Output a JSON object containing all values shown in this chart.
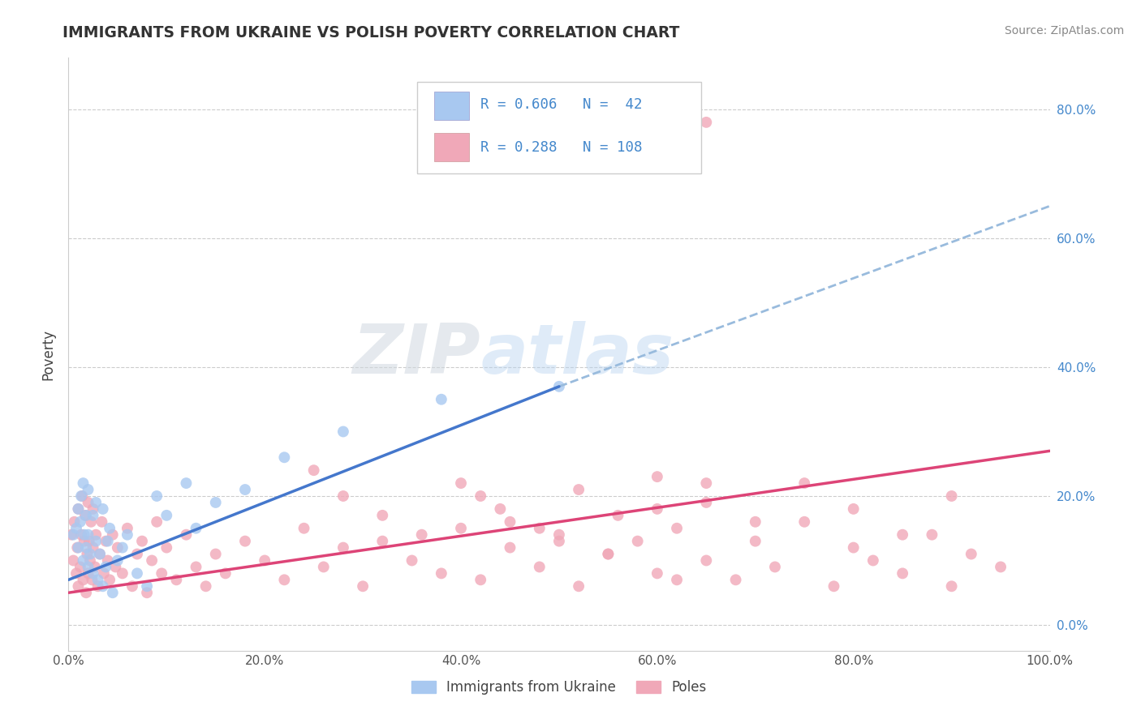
{
  "title": "IMMIGRANTS FROM UKRAINE VS POLISH POVERTY CORRELATION CHART",
  "source": "Source: ZipAtlas.com",
  "ylabel": "Poverty",
  "xlim": [
    0,
    1.0
  ],
  "ylim": [
    -0.04,
    0.88
  ],
  "ytick_vals": [
    0.0,
    0.2,
    0.4,
    0.6,
    0.8
  ],
  "ytick_labels_right": [
    "0.0%",
    "20.0%",
    "40.0%",
    "60.0%",
    "80.0%"
  ],
  "xtick_vals": [
    0.0,
    0.2,
    0.4,
    0.6,
    0.8,
    1.0
  ],
  "xtick_labels": [
    "0.0%",
    "20.0%",
    "40.0%",
    "60.0%",
    "80.0%",
    "100.0%"
  ],
  "blue_color": "#a8c8f0",
  "pink_color": "#f0a8b8",
  "blue_line_color": "#4477cc",
  "pink_line_color": "#dd4477",
  "dashed_line_color": "#99bbdd",
  "watermark_zip": "ZIP",
  "watermark_atlas": "atlas",
  "legend_r1": "R = 0.606",
  "legend_n1": "N =  42",
  "legend_r2": "R = 0.288",
  "legend_n2": "N = 108",
  "ukraine_x": [
    0.005,
    0.008,
    0.01,
    0.01,
    0.012,
    0.013,
    0.015,
    0.015,
    0.016,
    0.018,
    0.018,
    0.02,
    0.02,
    0.02,
    0.022,
    0.025,
    0.025,
    0.028,
    0.028,
    0.03,
    0.032,
    0.035,
    0.035,
    0.038,
    0.04,
    0.042,
    0.045,
    0.05,
    0.055,
    0.06,
    0.07,
    0.08,
    0.09,
    0.1,
    0.12,
    0.13,
    0.15,
    0.18,
    0.22,
    0.28,
    0.38,
    0.5
  ],
  "ukraine_y": [
    0.14,
    0.15,
    0.12,
    0.18,
    0.16,
    0.2,
    0.1,
    0.22,
    0.14,
    0.12,
    0.17,
    0.09,
    0.14,
    0.21,
    0.11,
    0.08,
    0.17,
    0.13,
    0.19,
    0.07,
    0.11,
    0.06,
    0.18,
    0.09,
    0.13,
    0.15,
    0.05,
    0.1,
    0.12,
    0.14,
    0.08,
    0.06,
    0.2,
    0.17,
    0.22,
    0.15,
    0.19,
    0.21,
    0.26,
    0.3,
    0.35,
    0.37
  ],
  "poles_x": [
    0.003,
    0.005,
    0.006,
    0.008,
    0.009,
    0.01,
    0.01,
    0.012,
    0.013,
    0.014,
    0.015,
    0.016,
    0.017,
    0.018,
    0.019,
    0.02,
    0.02,
    0.021,
    0.022,
    0.023,
    0.024,
    0.025,
    0.025,
    0.027,
    0.028,
    0.03,
    0.032,
    0.034,
    0.036,
    0.038,
    0.04,
    0.042,
    0.045,
    0.048,
    0.05,
    0.055,
    0.06,
    0.065,
    0.07,
    0.075,
    0.08,
    0.085,
    0.09,
    0.095,
    0.1,
    0.11,
    0.12,
    0.13,
    0.14,
    0.15,
    0.16,
    0.18,
    0.2,
    0.22,
    0.24,
    0.26,
    0.28,
    0.3,
    0.32,
    0.35,
    0.38,
    0.4,
    0.42,
    0.45,
    0.48,
    0.5,
    0.52,
    0.55,
    0.58,
    0.6,
    0.62,
    0.65,
    0.65,
    0.68,
    0.7,
    0.72,
    0.75,
    0.78,
    0.8,
    0.82,
    0.85,
    0.88,
    0.9,
    0.92,
    0.95,
    0.42,
    0.45,
    0.5,
    0.55,
    0.6,
    0.62,
    0.25,
    0.28,
    0.32,
    0.36,
    0.4,
    0.44,
    0.48,
    0.52,
    0.56,
    0.6,
    0.65,
    0.7,
    0.75,
    0.8,
    0.85,
    0.9,
    0.65
  ],
  "poles_y": [
    0.14,
    0.1,
    0.16,
    0.08,
    0.12,
    0.06,
    0.18,
    0.09,
    0.14,
    0.2,
    0.07,
    0.13,
    0.17,
    0.05,
    0.11,
    0.08,
    0.19,
    0.13,
    0.1,
    0.16,
    0.07,
    0.12,
    0.18,
    0.09,
    0.14,
    0.06,
    0.11,
    0.16,
    0.08,
    0.13,
    0.1,
    0.07,
    0.14,
    0.09,
    0.12,
    0.08,
    0.15,
    0.06,
    0.11,
    0.13,
    0.05,
    0.1,
    0.16,
    0.08,
    0.12,
    0.07,
    0.14,
    0.09,
    0.06,
    0.11,
    0.08,
    0.13,
    0.1,
    0.07,
    0.15,
    0.09,
    0.12,
    0.06,
    0.13,
    0.1,
    0.08,
    0.15,
    0.07,
    0.12,
    0.09,
    0.14,
    0.06,
    0.11,
    0.13,
    0.08,
    0.15,
    0.1,
    0.22,
    0.07,
    0.13,
    0.09,
    0.16,
    0.06,
    0.12,
    0.1,
    0.08,
    0.14,
    0.06,
    0.11,
    0.09,
    0.2,
    0.16,
    0.13,
    0.11,
    0.18,
    0.07,
    0.24,
    0.2,
    0.17,
    0.14,
    0.22,
    0.18,
    0.15,
    0.21,
    0.17,
    0.23,
    0.19,
    0.16,
    0.22,
    0.18,
    0.14,
    0.2,
    0.78
  ],
  "ukraine_trend": [
    0.0,
    0.5,
    0.07,
    0.37
  ],
  "ukraine_trend_dashed": [
    0.5,
    1.0,
    0.37,
    0.65
  ],
  "poles_trend": [
    0.0,
    1.0,
    0.05,
    0.27
  ]
}
